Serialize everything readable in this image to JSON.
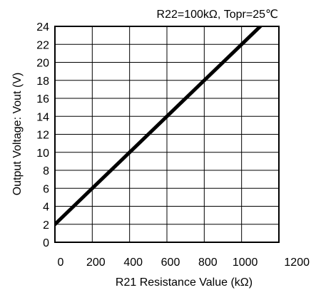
{
  "chart_data": {
    "type": "line",
    "condition": "R22=100kΩ, Topr=25℃",
    "xlabel": "R21 Resistance Value (kΩ)",
    "ylabel": "Output Voltage: Vout (V)",
    "xlim": [
      0,
      1200
    ],
    "ylim": [
      0,
      24
    ],
    "x_ticks": [
      "0",
      "200",
      "400",
      "600",
      "800",
      "1000",
      "1200"
    ],
    "y_ticks": [
      "0",
      "2",
      "4",
      "6",
      "8",
      "10",
      "12",
      "14",
      "16",
      "18",
      "20",
      "22",
      "24"
    ],
    "grid": true,
    "series": [
      {
        "x": [
          0,
          200,
          400,
          600,
          800,
          1000,
          1120
        ],
        "y": [
          2.0,
          6.0,
          10.0,
          14.0,
          18.0,
          22.0,
          24.4
        ],
        "color": "#000000"
      }
    ]
  }
}
